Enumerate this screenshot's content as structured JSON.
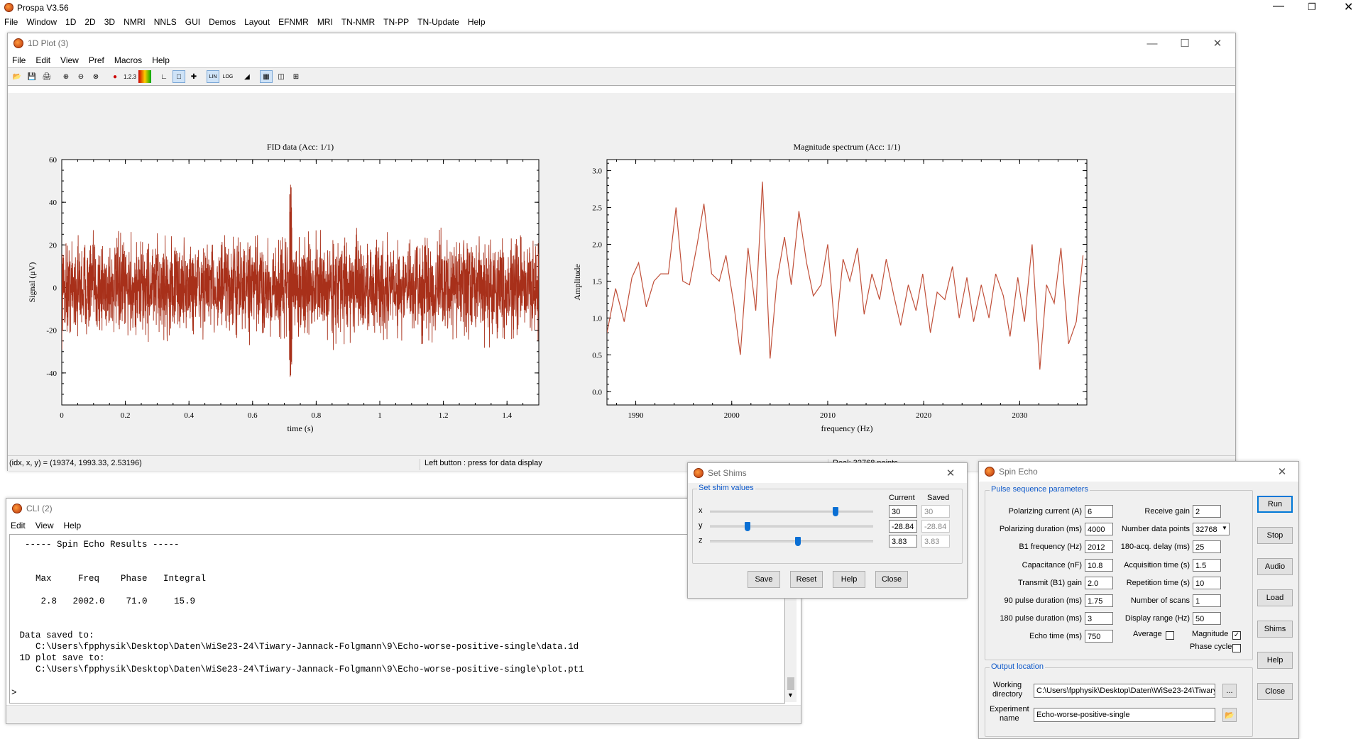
{
  "app": {
    "title": "Prospa V3.56",
    "menu": [
      "File",
      "Window",
      "1D",
      "2D",
      "3D",
      "NMRI",
      "NNLS",
      "GUI",
      "Demos",
      "Layout",
      "EFNMR",
      "MRI",
      "TN-NMR",
      "TN-PP",
      "TN-Update",
      "Help"
    ]
  },
  "plot_window": {
    "title": "1D Plot (3)",
    "menu": [
      "File",
      "Edit",
      "View",
      "Pref",
      "Macros",
      "Help"
    ],
    "status_coords": "(idx, x, y) = (19374, 1993.33,  2.53196)",
    "status_hint": "Left button : press for data display",
    "status_points": "Real: 32768 points"
  },
  "chart_data": [
    {
      "type": "line",
      "title": "FID data (Acc: 1/1)",
      "xlabel": "time (s)",
      "ylabel": "Signal (μV)",
      "xlim": [
        0,
        1.5
      ],
      "ylim": [
        -55,
        60
      ],
      "xticks": [
        "0",
        "0.2",
        "0.4",
        "0.6",
        "0.8",
        "1",
        "1.2",
        "1.4"
      ],
      "yticks": [
        "60",
        "40",
        "20",
        "0",
        "-20",
        "-40"
      ],
      "color": "#a8301a",
      "description_noise_amplitude": 18,
      "echo": {
        "x": 0.72,
        "peak": 50,
        "trough": -45
      }
    },
    {
      "type": "line",
      "title": "Magnitude spectrum (Acc: 1/1)",
      "xlabel": "frequency (Hz)",
      "ylabel": "Amplitude",
      "xlim": [
        1987,
        2037
      ],
      "ylim": [
        -0.18,
        3.15
      ],
      "xticks": [
        "1990",
        "2000",
        "2010",
        "2020",
        "2030"
      ],
      "yticks": [
        "3.0",
        "2.5",
        "2.0",
        "1.5",
        "1.0",
        "0.5",
        "0.0"
      ],
      "color": "#c0503a",
      "x": [
        1987,
        1987.9,
        1988.8,
        1989.6,
        1990.3,
        1991.1,
        1991.9,
        1992.6,
        1993.4,
        1994.2,
        1994.9,
        1995.6,
        1996.4,
        1997.1,
        1997.9,
        1998.7,
        1999.4,
        2000.2,
        2000.9,
        2001.7,
        2002.5,
        2003.2,
        2004.0,
        2004.7,
        2005.5,
        2006.2,
        2007.0,
        2007.8,
        2008.5,
        2009.3,
        2010.0,
        2010.8,
        2011.6,
        2012.3,
        2013.1,
        2013.8,
        2014.6,
        2015.4,
        2016.1,
        2016.9,
        2017.6,
        2018.4,
        2019.2,
        2019.9,
        2020.7,
        2021.4,
        2022.2,
        2023.0,
        2023.7,
        2024.5,
        2025.2,
        2026.0,
        2026.8,
        2027.5,
        2028.3,
        2029.0,
        2029.8,
        2030.5,
        2031.3,
        2032.1,
        2032.8,
        2033.6,
        2034.3,
        2035.1,
        2035.9,
        2036.6
      ],
      "y": [
        0.8,
        1.4,
        0.95,
        1.55,
        1.75,
        1.15,
        1.5,
        1.6,
        1.6,
        2.5,
        1.5,
        1.45,
        2.0,
        2.55,
        1.6,
        1.5,
        1.85,
        1.2,
        0.5,
        1.95,
        1.1,
        2.85,
        0.45,
        1.5,
        2.1,
        1.45,
        2.45,
        1.75,
        1.3,
        1.45,
        2.0,
        0.75,
        1.8,
        1.5,
        1.95,
        1.05,
        1.6,
        1.25,
        1.8,
        1.3,
        0.9,
        1.45,
        1.1,
        1.6,
        0.8,
        1.35,
        1.25,
        1.7,
        1.0,
        1.55,
        0.95,
        1.45,
        1.0,
        1.6,
        1.3,
        0.75,
        1.55,
        0.95,
        2.0,
        0.3,
        1.45,
        1.2,
        1.95,
        0.65,
        0.95,
        1.85
      ]
    }
  ],
  "cli": {
    "title": "CLI (2)",
    "menu": [
      "Edit",
      "View",
      "Help"
    ],
    "lines": [
      "  ----- Spin Echo Results -----",
      "",
      "",
      "    Max     Freq    Phase   Integral",
      "",
      "     2.8   2002.0    71.0     15.9",
      "",
      "",
      " Data saved to:",
      "    C:\\Users\\fpphysik\\Desktop\\Daten\\WiSe23-24\\Tiwary-Jannack-Folgmann\\9\\Echo-worse-positive-single\\data.1d",
      " 1D plot save to:",
      "    C:\\Users\\fpphysik\\Desktop\\Daten\\WiSe23-24\\Tiwary-Jannack-Folgmann\\9\\Echo-worse-positive-single\\plot.pt1"
    ],
    "prompt": ">"
  },
  "shims": {
    "title": "Set Shims",
    "group_label": "Set shim values",
    "col_current": "Current",
    "col_saved": "Saved",
    "rows": [
      {
        "axis": "x",
        "current": "30",
        "saved": "30",
        "slider": 0.78
      },
      {
        "axis": "y",
        "current": "-28.84",
        "saved": "-28.84",
        "slider": 0.22
      },
      {
        "axis": "z",
        "current": "3.83",
        "saved": "3.83",
        "slider": 0.54
      }
    ],
    "buttons": [
      "Save",
      "Reset",
      "Help",
      "Close"
    ]
  },
  "spin_echo": {
    "title": "Spin Echo",
    "group_pulse": "Pulse sequence parameters",
    "left": [
      {
        "label": "Polarizing current (A)",
        "value": "6"
      },
      {
        "label": "Polarizing duration (ms)",
        "value": "4000"
      },
      {
        "label": "B1 frequency (Hz)",
        "value": "2012"
      },
      {
        "label": "Capacitance (nF)",
        "value": "10.8"
      },
      {
        "label": "Transmit (B1) gain",
        "value": "2.0"
      },
      {
        "label": "90 pulse duration (ms)",
        "value": "1.75"
      },
      {
        "label": "180 pulse duration (ms)",
        "value": "3"
      },
      {
        "label": "Echo time (ms)",
        "value": "750"
      }
    ],
    "right": [
      {
        "label": "Receive gain",
        "value": "2"
      },
      {
        "label": "Number data points",
        "value": "32768"
      },
      {
        "label": "180-acq. delay (ms)",
        "value": "25"
      },
      {
        "label": "Acquisition time (s)",
        "value": "1.5"
      },
      {
        "label": "Repetition time (s)",
        "value": "10"
      },
      {
        "label": "Number of scans",
        "value": "1"
      },
      {
        "label": "Display range (Hz)",
        "value": "50"
      }
    ],
    "average_label": "Average",
    "magnitude_label": "Magnitude",
    "phase_cycle_label": "Phase cycle",
    "group_output": "Output location",
    "working_dir_label1": "Working",
    "working_dir_label2": "directory",
    "working_dir": "C:\\Users\\fpphysik\\Desktop\\Daten\\WiSe23-24\\Tiwary",
    "experiment_label1": "Experiment",
    "experiment_label2": "name",
    "experiment_name": "Echo-worse-positive-single",
    "browse_label": "...",
    "buttons": [
      "Run",
      "Stop",
      "Audio",
      "Load",
      "Shims",
      "Help",
      "Close"
    ]
  }
}
